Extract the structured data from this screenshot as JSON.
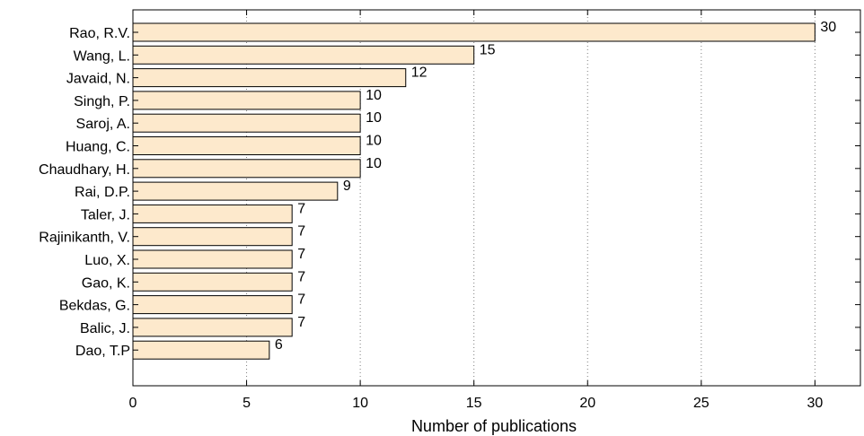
{
  "chart_data": {
    "type": "bar",
    "orientation": "horizontal",
    "categories": [
      "Rao, R.V.",
      "Wang, L.",
      "Javaid, N.",
      "Singh, P.",
      "Saroj, A.",
      "Huang, C.",
      "Chaudhary, H.",
      "Rai, D.P.",
      "Taler, J.",
      "Rajinikanth, V.",
      "Luo, X.",
      "Gao, K.",
      "Bekdas, G.",
      "Balic, J.",
      "Dao, T.P"
    ],
    "values": [
      30,
      15,
      12,
      10,
      10,
      10,
      10,
      9,
      7,
      7,
      7,
      7,
      7,
      7,
      6
    ],
    "data_labels": [
      "30",
      "15",
      "12",
      "10",
      "10",
      "10",
      "10",
      "9",
      "7",
      "7",
      "7",
      "7",
      "7",
      "7",
      "6"
    ],
    "xlabel": "Number of publications",
    "ylabel": "",
    "xlim": [
      0,
      32
    ],
    "xticks": [
      0,
      5,
      10,
      15,
      20,
      25,
      30
    ],
    "xtick_labels": [
      "0",
      "5",
      "10",
      "15",
      "20",
      "25",
      "30"
    ],
    "grid": "vertical dotted",
    "colors": {
      "bar_fill": "#fde9cc",
      "bar_stroke": "#000000",
      "grid": "#7f7f7f"
    }
  }
}
